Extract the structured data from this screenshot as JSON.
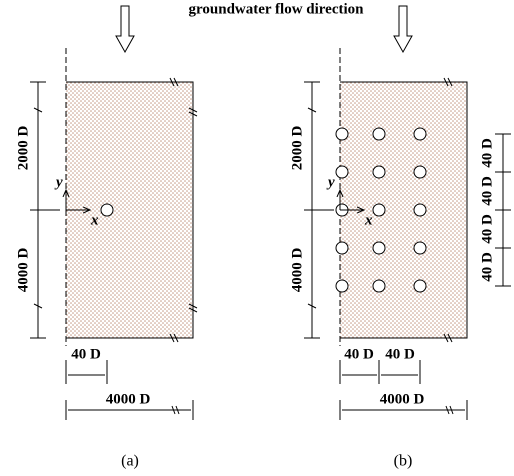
{
  "header": {
    "title": "groundwater flow direction"
  },
  "panels": [
    {
      "caption": "(a)",
      "upper": "2000 D",
      "lower": "4000 D",
      "y_axis": "y",
      "x_axis": "x",
      "spacing": [
        "40 D"
      ],
      "width": "4000 D"
    },
    {
      "caption": "(b)",
      "upper": "2000 D",
      "lower": "4000 D",
      "y_axis": "y",
      "x_axis": "x",
      "spacing": [
        "40 D",
        "40 D"
      ],
      "width": "4000 D",
      "vertical_spacing": [
        "40 D",
        "40 D",
        "40 D",
        "40 D"
      ]
    }
  ]
}
